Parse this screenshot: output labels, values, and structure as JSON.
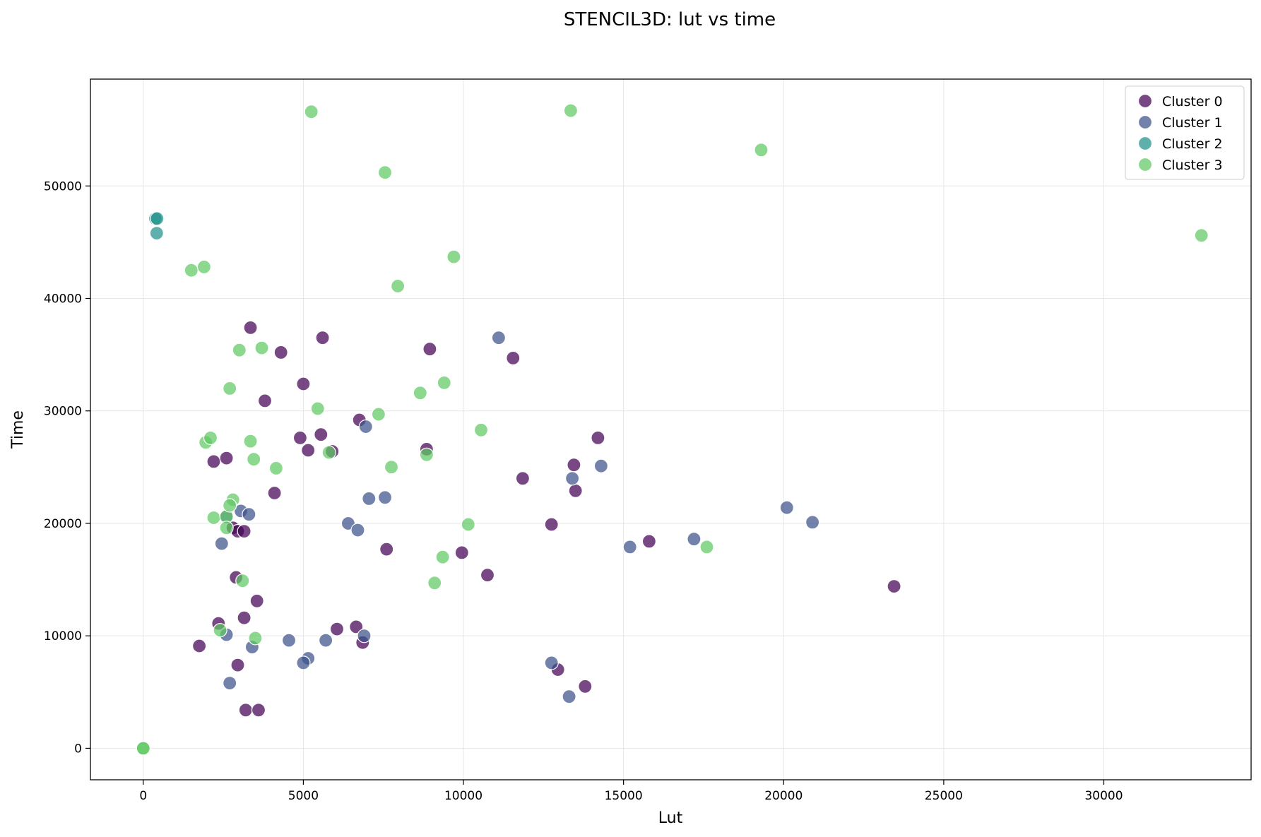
{
  "chart_data": {
    "type": "scatter",
    "title": "STENCIL3D: lut vs time",
    "xlabel": "Lut",
    "ylabel": "Time",
    "xlim": [
      -1650,
      34600
    ],
    "ylim": [
      -2800,
      59500
    ],
    "xticks": [
      0,
      5000,
      10000,
      15000,
      20000,
      25000,
      30000
    ],
    "yticks": [
      0,
      10000,
      20000,
      30000,
      40000,
      50000
    ],
    "grid": true,
    "legend_position": "top-right",
    "series": [
      {
        "name": "Cluster 0",
        "color": "#440154",
        "points": [
          [
            3350,
            37400
          ],
          [
            4300,
            35200
          ],
          [
            5600,
            36500
          ],
          [
            8950,
            35500
          ],
          [
            11550,
            34700
          ],
          [
            5000,
            32400
          ],
          [
            3800,
            30900
          ],
          [
            6750,
            29200
          ],
          [
            4900,
            27600
          ],
          [
            5550,
            27900
          ],
          [
            5150,
            26500
          ],
          [
            5900,
            26400
          ],
          [
            8850,
            26600
          ],
          [
            14200,
            27600
          ],
          [
            2200,
            25500
          ],
          [
            2600,
            25800
          ],
          [
            13450,
            25200
          ],
          [
            13500,
            22900
          ],
          [
            11850,
            24000
          ],
          [
            4100,
            22700
          ],
          [
            2800,
            19600
          ],
          [
            2950,
            19300
          ],
          [
            3150,
            19300
          ],
          [
            12750,
            19900
          ],
          [
            7600,
            17700
          ],
          [
            9950,
            17400
          ],
          [
            15800,
            18400
          ],
          [
            2900,
            15200
          ],
          [
            3550,
            13100
          ],
          [
            10750,
            15400
          ],
          [
            2350,
            11100
          ],
          [
            3150,
            11600
          ],
          [
            6050,
            10600
          ],
          [
            6650,
            10800
          ],
          [
            6850,
            9400
          ],
          [
            1750,
            9100
          ],
          [
            2950,
            7400
          ],
          [
            12950,
            7000
          ],
          [
            13800,
            5500
          ],
          [
            3200,
            3400
          ],
          [
            3600,
            3400
          ],
          [
            23450,
            14400
          ]
        ]
      },
      {
        "name": "Cluster 1",
        "color": "#3b528b",
        "points": [
          [
            11100,
            36500
          ],
          [
            6950,
            28600
          ],
          [
            14300,
            25100
          ],
          [
            13400,
            24000
          ],
          [
            7050,
            22200
          ],
          [
            7550,
            22300
          ],
          [
            3050,
            21100
          ],
          [
            3300,
            20800
          ],
          [
            2600,
            20600
          ],
          [
            6400,
            20000
          ],
          [
            6700,
            19400
          ],
          [
            2450,
            18200
          ],
          [
            20100,
            21400
          ],
          [
            20900,
            20100
          ],
          [
            17200,
            18600
          ],
          [
            15200,
            17900
          ],
          [
            2600,
            10100
          ],
          [
            6900,
            10000
          ],
          [
            3400,
            9000
          ],
          [
            4550,
            9600
          ],
          [
            5700,
            9600
          ],
          [
            5150,
            8000
          ],
          [
            5000,
            7600
          ],
          [
            12750,
            7600
          ],
          [
            2700,
            5800
          ],
          [
            13300,
            4600
          ]
        ]
      },
      {
        "name": "Cluster 2",
        "color": "#21918c",
        "points": [
          [
            380,
            47100
          ],
          [
            430,
            47100
          ],
          [
            420,
            45800
          ]
        ]
      },
      {
        "name": "Cluster 3",
        "color": "#5ec962",
        "points": [
          [
            5250,
            56600
          ],
          [
            13350,
            56700
          ],
          [
            19300,
            53200
          ],
          [
            7550,
            51200
          ],
          [
            33050,
            45600
          ],
          [
            1500,
            42500
          ],
          [
            1900,
            42800
          ],
          [
            9700,
            43700
          ],
          [
            7950,
            41100
          ],
          [
            3000,
            35400
          ],
          [
            3700,
            35600
          ],
          [
            2700,
            32000
          ],
          [
            9400,
            32500
          ],
          [
            8650,
            31600
          ],
          [
            5450,
            30200
          ],
          [
            7350,
            29700
          ],
          [
            10550,
            28300
          ],
          [
            1950,
            27200
          ],
          [
            2100,
            27600
          ],
          [
            3350,
            27300
          ],
          [
            3450,
            25700
          ],
          [
            4150,
            24900
          ],
          [
            5800,
            26300
          ],
          [
            8850,
            26100
          ],
          [
            7750,
            25000
          ],
          [
            2800,
            22100
          ],
          [
            2200,
            20500
          ],
          [
            2600,
            20600
          ],
          [
            2700,
            21600
          ],
          [
            2600,
            19600
          ],
          [
            10150,
            19900
          ],
          [
            9350,
            17000
          ],
          [
            17600,
            17900
          ],
          [
            3100,
            14900
          ],
          [
            9100,
            14700
          ],
          [
            2400,
            10500
          ],
          [
            3500,
            9800
          ],
          [
            0,
            0
          ],
          [
            0,
            0
          ]
        ]
      }
    ]
  }
}
